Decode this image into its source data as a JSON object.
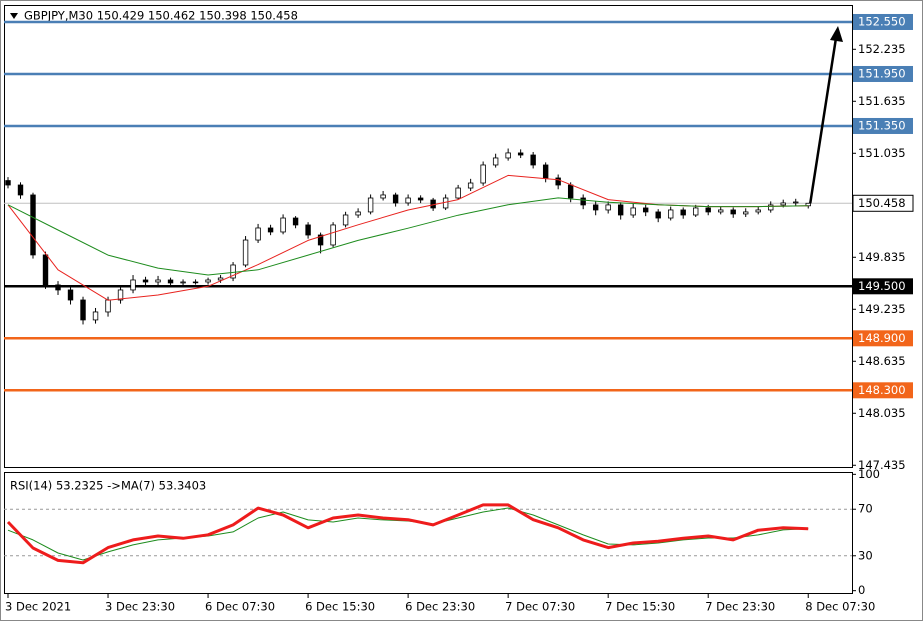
{
  "chart_data": [
    {
      "type": "candlestick",
      "title": "GBPJPY,M30  150.429 150.462 150.398 150.458",
      "xlim": [
        -0.32,
        67.5
      ],
      "ylim": [
        147.415,
        152.746
      ],
      "yticks": [
        152.235,
        151.635,
        151.035,
        149.835,
        149.235,
        148.635,
        148.035,
        147.435
      ],
      "open": [
        150.72,
        150.669,
        150.554,
        149.862,
        149.516,
        149.458,
        149.342,
        149.112,
        149.204,
        149.342,
        149.458,
        149.573,
        149.55,
        149.573,
        149.539,
        149.55,
        149.55,
        149.573,
        149.596,
        149.746,
        150.034,
        150.173,
        150.127,
        150.288,
        150.208,
        150.092,
        149.977,
        150.208,
        150.323,
        150.358,
        150.519,
        150.554,
        150.462,
        150.519,
        150.496,
        150.404,
        150.519,
        150.634,
        150.692,
        150.9,
        150.981,
        151.039,
        151.015,
        150.9,
        150.75,
        150.669,
        150.519,
        150.439,
        150.381,
        150.439,
        150.323,
        150.404,
        150.358,
        150.288,
        150.381,
        150.323,
        150.404,
        150.358,
        150.381,
        150.335,
        150.358,
        150.381,
        150.439,
        150.462,
        150.429
      ],
      "high": [
        150.76,
        150.7,
        150.58,
        149.9,
        149.56,
        149.49,
        149.38,
        149.25,
        149.38,
        149.51,
        149.63,
        149.61,
        149.62,
        149.6,
        149.58,
        149.58,
        149.6,
        149.63,
        149.78,
        150.08,
        150.22,
        150.21,
        150.33,
        150.31,
        150.24,
        150.12,
        150.24,
        150.36,
        150.4,
        150.56,
        150.6,
        150.58,
        150.56,
        150.55,
        150.52,
        150.56,
        150.67,
        150.74,
        150.94,
        151.03,
        151.09,
        151.08,
        151.05,
        150.93,
        150.79,
        150.7,
        150.56,
        150.48,
        150.48,
        150.47,
        150.45,
        150.44,
        150.39,
        150.42,
        150.41,
        150.44,
        150.44,
        150.42,
        150.41,
        150.4,
        150.42,
        150.48,
        150.5,
        150.51,
        150.462
      ],
      "low": [
        150.63,
        150.51,
        149.82,
        149.47,
        149.4,
        149.29,
        149.06,
        149.07,
        149.15,
        149.3,
        149.42,
        149.5,
        149.51,
        149.5,
        149.51,
        149.52,
        149.52,
        149.54,
        149.56,
        149.72,
        150.0,
        150.09,
        150.1,
        150.17,
        150.05,
        149.88,
        149.95,
        150.18,
        150.29,
        150.33,
        150.49,
        150.42,
        150.43,
        150.46,
        150.37,
        150.38,
        150.5,
        150.6,
        150.66,
        150.87,
        150.95,
        150.98,
        150.86,
        150.7,
        150.62,
        150.47,
        150.39,
        150.32,
        150.34,
        150.27,
        150.29,
        150.31,
        150.24,
        150.26,
        150.28,
        150.3,
        150.32,
        150.33,
        150.29,
        150.3,
        150.33,
        150.35,
        150.41,
        150.43,
        150.398
      ],
      "close": [
        150.669,
        150.554,
        149.862,
        149.516,
        149.458,
        149.342,
        149.112,
        149.204,
        149.342,
        149.458,
        149.573,
        149.55,
        149.573,
        149.539,
        149.55,
        149.55,
        149.573,
        149.596,
        149.746,
        150.034,
        150.173,
        150.127,
        150.288,
        150.208,
        150.092,
        149.977,
        150.208,
        150.323,
        150.358,
        150.519,
        150.554,
        150.462,
        150.519,
        150.496,
        150.404,
        150.519,
        150.634,
        150.692,
        150.9,
        150.981,
        151.039,
        151.015,
        150.9,
        150.75,
        150.669,
        150.519,
        150.439,
        150.381,
        150.439,
        150.323,
        150.404,
        150.358,
        150.288,
        150.381,
        150.323,
        150.404,
        150.358,
        150.381,
        150.335,
        150.358,
        150.381,
        150.439,
        150.462,
        150.473,
        150.458
      ],
      "series": [
        {
          "color": "#e8231f",
          "x": [
            0,
            4,
            8,
            12,
            16,
            20,
            24,
            28,
            32,
            36,
            40,
            44,
            48,
            52,
            56,
            60,
            64
          ],
          "values": [
            150.44,
            149.69,
            149.34,
            149.4,
            149.5,
            149.75,
            150.03,
            150.21,
            150.38,
            150.5,
            150.78,
            150.73,
            150.5,
            150.44,
            150.42,
            150.42,
            150.43
          ]
        },
        {
          "color": "#1e8c1e",
          "x": [
            0,
            4,
            8,
            12,
            16,
            20,
            24,
            28,
            32,
            36,
            40,
            44,
            48,
            52,
            56,
            60,
            64
          ],
          "values": [
            150.44,
            150.15,
            149.86,
            149.71,
            149.63,
            149.69,
            149.86,
            150.03,
            150.17,
            150.32,
            150.44,
            150.52,
            150.47,
            150.44,
            150.42,
            150.42,
            150.43
          ]
        }
      ],
      "levels": [
        {
          "value": 152.55,
          "label": "152.550",
          "color": "#4a7fb5"
        },
        {
          "value": 151.95,
          "label": "151.950",
          "color": "#4a7fb5"
        },
        {
          "value": 151.35,
          "label": "151.350",
          "color": "#4a7fb5"
        },
        {
          "value": 149.5,
          "label": "149.500",
          "color": "#000000"
        },
        {
          "value": 148.9,
          "label": "148.900",
          "color": "#f2651a"
        },
        {
          "value": 148.3,
          "label": "148.300",
          "color": "#f2651a"
        }
      ],
      "last_price": 150.458
    },
    {
      "type": "line",
      "title": "RSI(14) 53.2325  ->MA(7) 53.3403",
      "xlim": [
        -0.32,
        67.5
      ],
      "ylim": [
        -2,
        102
      ],
      "yticks": [
        100,
        70,
        30,
        0
      ],
      "ref_lines": [
        70,
        30
      ],
      "xticks": [
        {
          "value": 0,
          "label": "3 Dec 2021"
        },
        {
          "value": 8,
          "label": "3 Dec 23:30"
        },
        {
          "value": 16,
          "label": "6 Dec 07:30"
        },
        {
          "value": 24,
          "label": "6 Dec 15:30"
        },
        {
          "value": 32,
          "label": "6 Dec 23:30"
        },
        {
          "value": 40,
          "label": "7 Dec 07:30"
        },
        {
          "value": 48,
          "label": "7 Dec 15:30"
        },
        {
          "value": 56,
          "label": "7 Dec 23:30"
        },
        {
          "value": 64,
          "label": "8 Dec 07:30"
        }
      ],
      "series": [
        {
          "color": "#1e8c1e",
          "width": 1,
          "x": [
            0,
            2,
            4,
            6,
            8,
            10,
            12,
            14,
            16,
            18,
            20,
            22,
            24,
            26,
            28,
            30,
            32,
            34,
            36,
            38,
            40,
            42,
            44,
            46,
            48,
            50,
            52,
            54,
            56,
            58,
            60,
            62,
            64
          ],
          "values": [
            52,
            43.6,
            32.4,
            26.4,
            33.3,
            39.3,
            43.6,
            45.3,
            47,
            50.5,
            62.5,
            67.6,
            60.8,
            59,
            62.5,
            60.8,
            59.9,
            57.3,
            62.5,
            67.6,
            71.1,
            65,
            56.5,
            47.9,
            40.1,
            39.3,
            41,
            43.6,
            45.3,
            45.3,
            47.9,
            52.2,
            53.3403
          ]
        },
        {
          "color": "#ee1c1c",
          "width": 3,
          "x": [
            0,
            2,
            4,
            6,
            8,
            10,
            12,
            14,
            16,
            18,
            20,
            22,
            24,
            26,
            28,
            30,
            32,
            34,
            36,
            38,
            40,
            42,
            44,
            46,
            48,
            50,
            52,
            54,
            56,
            58,
            60,
            62,
            64
          ],
          "values": [
            59,
            36.7,
            26,
            24,
            37,
            43.6,
            47,
            45,
            48,
            56.5,
            71,
            65,
            54,
            62.5,
            65,
            62.5,
            61,
            56.5,
            65,
            73.7,
            73.7,
            61,
            54,
            43.6,
            37,
            41,
            42.4,
            45,
            47,
            43.6,
            52,
            54,
            53.2325
          ]
        }
      ]
    }
  ]
}
